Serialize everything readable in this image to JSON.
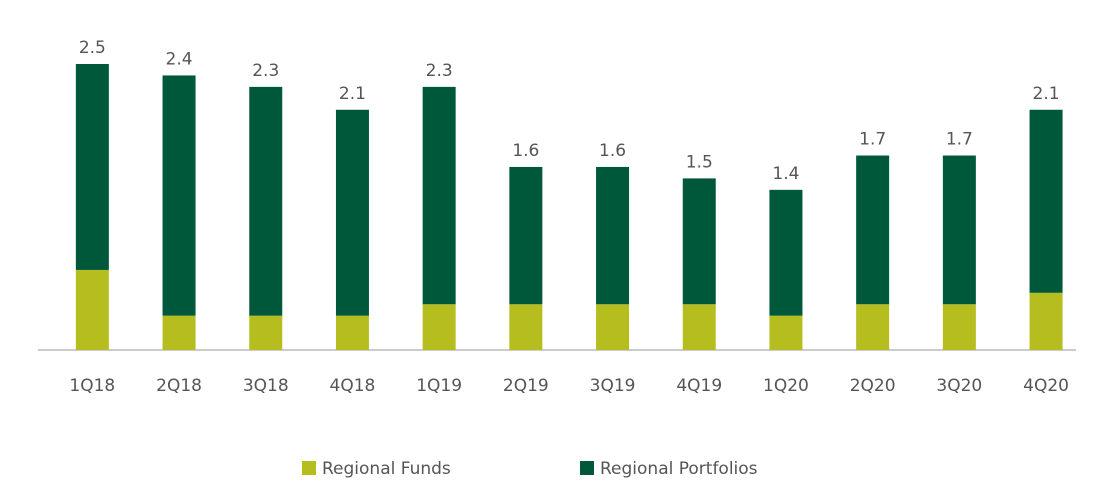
{
  "chart_data": {
    "type": "stacked_bar",
    "categories": [
      "1Q18",
      "2Q18",
      "3Q18",
      "4Q18",
      "1Q19",
      "2Q19",
      "3Q19",
      "4Q19",
      "1Q20",
      "2Q20",
      "3Q20",
      "4Q20"
    ],
    "series": [
      {
        "name": "Regional Funds",
        "color": "#b5bd1f",
        "values": [
          0.7,
          0.3,
          0.3,
          0.3,
          0.4,
          0.4,
          0.4,
          0.4,
          0.3,
          0.4,
          0.4,
          0.5
        ]
      },
      {
        "name": "Regional Portfolios",
        "color": "#00583a",
        "values": [
          1.8,
          2.1,
          2.0,
          1.8,
          1.9,
          1.2,
          1.2,
          1.1,
          1.1,
          1.3,
          1.3,
          1.6
        ]
      }
    ],
    "total_labels": [
      "2.5",
      "2.4",
      "2.3",
      "2.1",
      "2.3",
      "1.6",
      "1.6",
      "1.5",
      "1.4",
      "1.7",
      "1.7",
      "2.1"
    ]
  }
}
